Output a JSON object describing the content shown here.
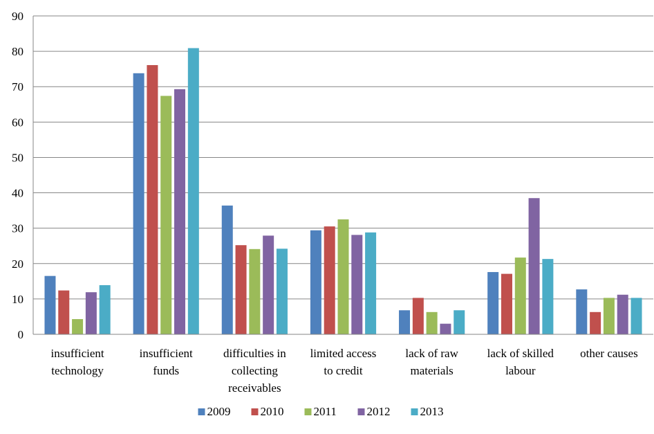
{
  "chart_data": {
    "type": "bar",
    "title": "",
    "xlabel": "",
    "ylabel": "",
    "ylim": [
      0,
      90
    ],
    "yticks": [
      0,
      10,
      20,
      30,
      40,
      50,
      60,
      70,
      80,
      90
    ],
    "grid": true,
    "legend_position": "bottom",
    "categories": [
      [
        "insufficient",
        "technology"
      ],
      [
        "insufficient",
        "funds"
      ],
      [
        "difficulties in",
        "collecting",
        "receivables"
      ],
      [
        "limited access",
        "to credit"
      ],
      [
        "lack of raw",
        "materials"
      ],
      [
        "lack of skilled",
        "labour"
      ],
      [
        "other causes"
      ]
    ],
    "series": [
      {
        "name": "2009",
        "color": "#4F81BD",
        "values": [
          16.5,
          73.8,
          36.4,
          29.4,
          6.8,
          17.6,
          12.7
        ]
      },
      {
        "name": "2010",
        "color": "#C0504D",
        "values": [
          12.4,
          76.1,
          25.2,
          30.5,
          10.3,
          17.1,
          6.3
        ]
      },
      {
        "name": "2011",
        "color": "#9BBB59",
        "values": [
          4.3,
          67.4,
          24.1,
          32.5,
          6.3,
          21.7,
          10.3
        ]
      },
      {
        "name": "2012",
        "color": "#8064A2",
        "values": [
          11.9,
          69.3,
          27.9,
          28.1,
          3.0,
          38.5,
          11.2
        ]
      },
      {
        "name": "2013",
        "color": "#4BACC6",
        "values": [
          13.9,
          80.9,
          24.2,
          28.8,
          6.8,
          21.3,
          10.3
        ]
      }
    ]
  }
}
